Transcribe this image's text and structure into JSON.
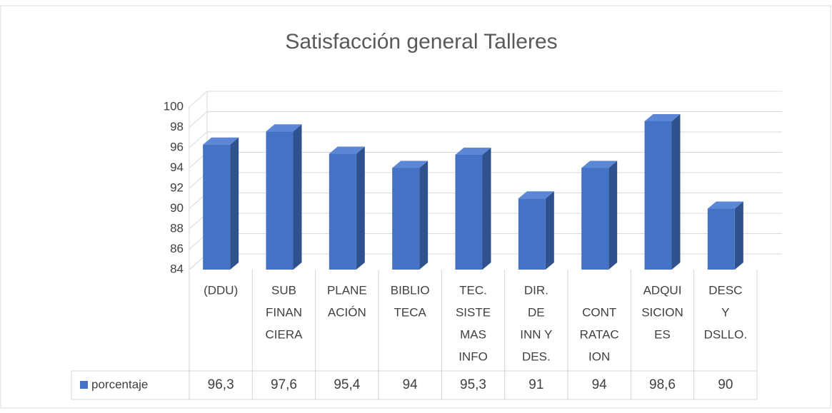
{
  "chart_data": {
    "type": "bar3d",
    "title": "Satisfacción general Talleres",
    "categories": [
      [
        "(DDU)"
      ],
      [
        "SUB",
        "FINAN",
        "CIERA"
      ],
      [
        "PLANE",
        "ACIÓN"
      ],
      [
        "BIBLIO",
        "TECA"
      ],
      [
        "TEC.",
        "SISTE",
        "MAS",
        "INFO"
      ],
      [
        "DIR.",
        "DE",
        "INN Y",
        "DES."
      ],
      [
        null,
        "CONT",
        "RATAC",
        "ION"
      ],
      [
        "ADQUI",
        "SICION",
        "ES"
      ],
      [
        "DESC",
        "Y",
        "DSLLO."
      ]
    ],
    "series": [
      {
        "name": "porcentaje",
        "color": "#4472c4",
        "values": [
          96.3,
          97.6,
          95.4,
          94,
          95.3,
          91,
          94,
          98.6,
          90
        ],
        "value_labels": [
          "96,3",
          "97,6",
          "95,4",
          "94",
          "95,3",
          "91",
          "94",
          "98,6",
          "90"
        ]
      }
    ],
    "ylim": [
      84,
      100
    ],
    "yticks": [
      84,
      86,
      88,
      90,
      92,
      94,
      96,
      98,
      100
    ],
    "grid": true,
    "legend": "table"
  }
}
